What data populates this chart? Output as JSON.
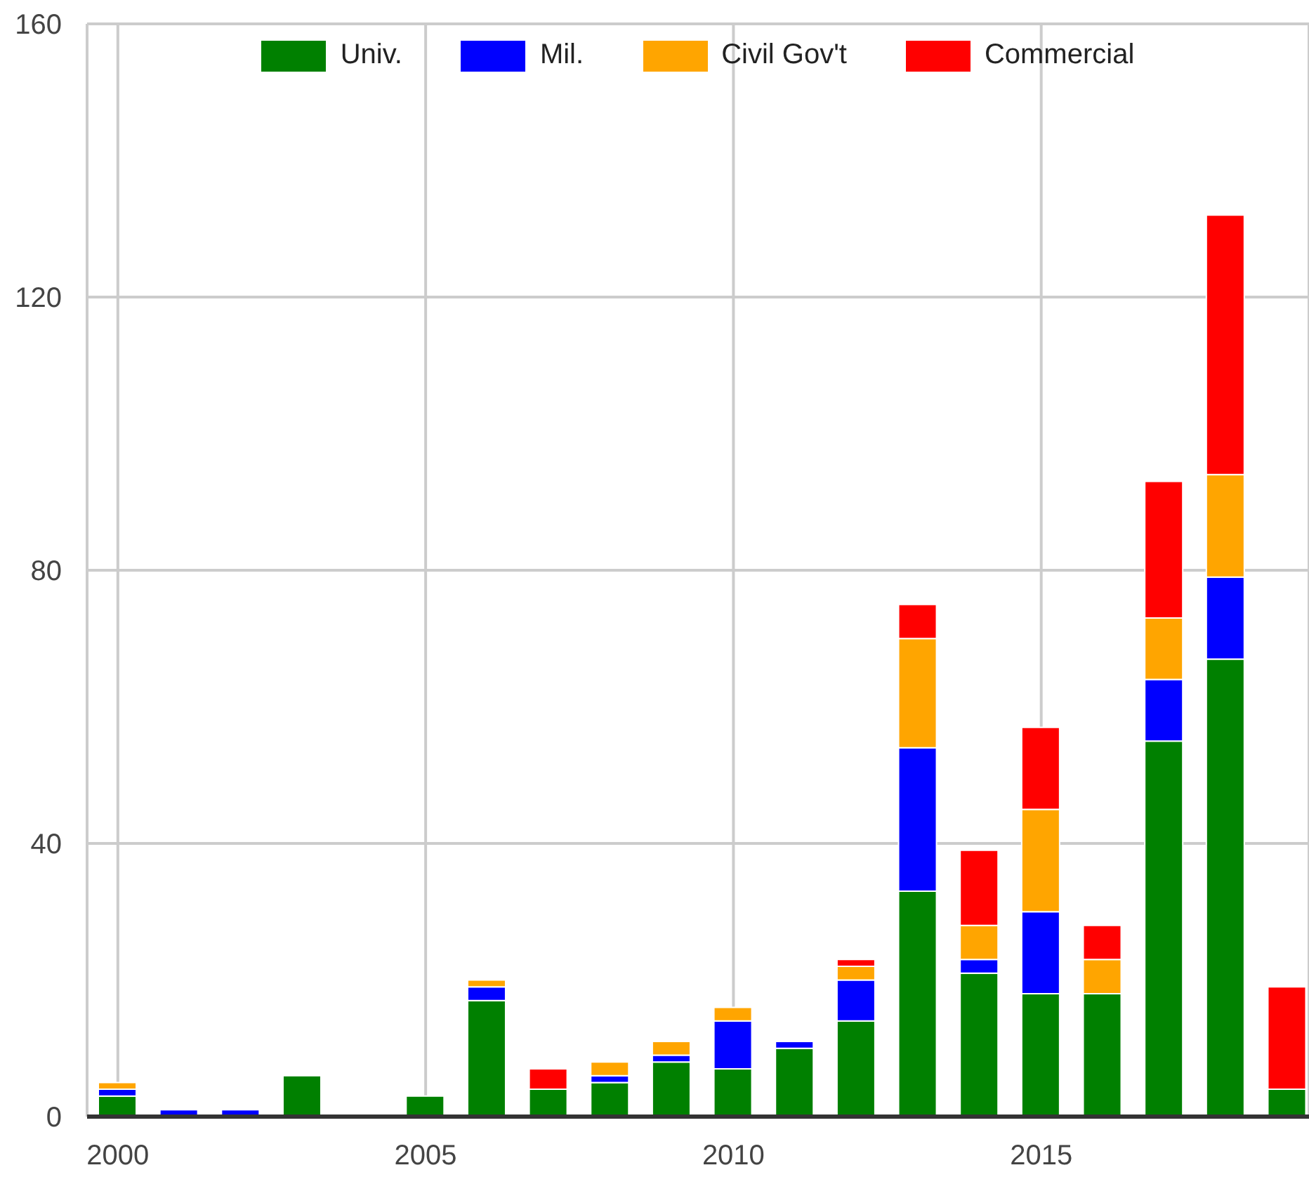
{
  "chart_data": {
    "type": "bar",
    "stacked": true,
    "x": [
      2000,
      2001,
      2002,
      2003,
      2004,
      2005,
      2006,
      2007,
      2008,
      2009,
      2010,
      2011,
      2012,
      2013,
      2014,
      2015,
      2016,
      2017,
      2018,
      2019
    ],
    "series": [
      {
        "name": "Univ.",
        "color": "#008000",
        "values": [
          3,
          0,
          0,
          6,
          0,
          3,
          17,
          4,
          5,
          8,
          7,
          10,
          14,
          33,
          21,
          18,
          18,
          55,
          67,
          4
        ]
      },
      {
        "name": "Mil.",
        "color": "#0000ff",
        "values": [
          1,
          1,
          1,
          0,
          0,
          0,
          2,
          0,
          1,
          1,
          7,
          1,
          6,
          21,
          2,
          12,
          0,
          9,
          12,
          0
        ]
      },
      {
        "name": "Civil Gov't",
        "color": "#ffa500",
        "values": [
          1,
          0,
          0,
          0,
          0,
          0,
          1,
          0,
          2,
          2,
          2,
          0,
          2,
          16,
          5,
          15,
          5,
          9,
          15,
          0
        ]
      },
      {
        "name": "Commercial",
        "color": "#ff0000",
        "values": [
          0,
          0,
          0,
          0,
          0,
          0,
          0,
          3,
          0,
          0,
          0,
          0,
          1,
          5,
          11,
          12,
          5,
          20,
          38,
          15
        ]
      }
    ],
    "xlim": [
      1999.5,
      2019.35
    ],
    "xticks": [
      2000,
      2005,
      2010,
      2015
    ],
    "ylim": [
      0,
      160
    ],
    "yticks": [
      0,
      40,
      80,
      120,
      160
    ],
    "grid": true,
    "legend": "top"
  }
}
